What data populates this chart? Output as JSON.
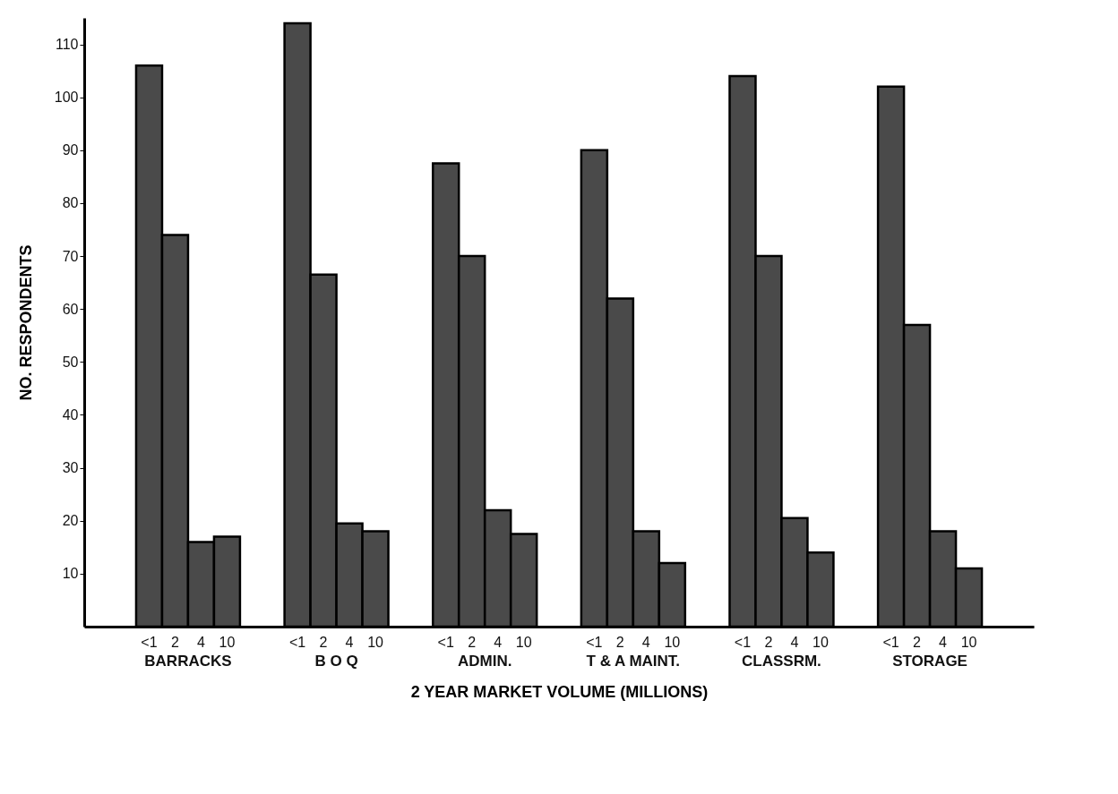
{
  "chart_data": {
    "type": "bar",
    "xlabel": "2 YEAR MARKET VOLUME (MILLIONS)",
    "ylabel": "NO. RESPONDENTS",
    "categories": [
      "BARRACKS",
      "B O Q",
      "ADMIN.",
      "T & A MAINT.",
      "CLASSRM.",
      "STORAGE"
    ],
    "series": [
      {
        "name": "<1",
        "color": "#4a4a4a",
        "values": [
          106,
          114,
          87.5,
          90,
          104,
          102
        ]
      },
      {
        "name": "2",
        "color": "#4a4a4a",
        "values": [
          74,
          66.5,
          70,
          62,
          70,
          57
        ]
      },
      {
        "name": "4",
        "color": "#4a4a4a",
        "values": [
          16,
          19.5,
          22,
          18,
          20.5,
          18
        ]
      },
      {
        "name": "10",
        "color": "#4a4a4a",
        "values": [
          17,
          18,
          17.5,
          12,
          14,
          11
        ]
      }
    ],
    "ylim": [
      0,
      115
    ],
    "yticks": [
      10,
      20,
      30,
      40,
      50,
      60,
      70,
      80,
      90,
      100,
      110
    ],
    "grid": false,
    "legend": false
  }
}
